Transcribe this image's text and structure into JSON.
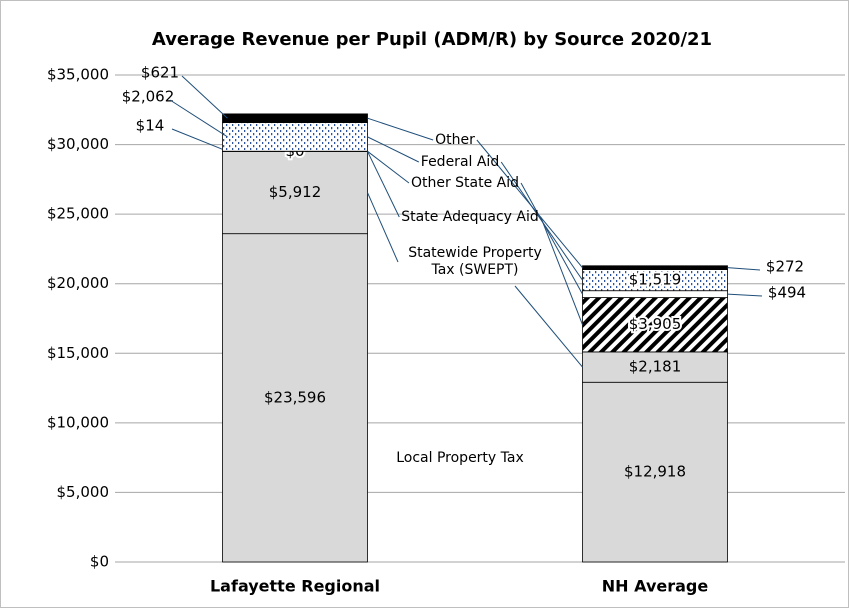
{
  "chart_data": {
    "type": "stacked-bar",
    "title": "Average Revenue per Pupil (ADM/R) by Source 2020/21",
    "categories": [
      "Lafayette Regional",
      "NH Average"
    ],
    "series": [
      {
        "name": "Local Property Tax",
        "color": "#d9d9d9",
        "values": [
          23596,
          12918
        ],
        "value_labels": [
          "$23,596",
          "$12,918"
        ]
      },
      {
        "name": "Statewide Property Tax (SWEPT)",
        "color": "#d9d9d9",
        "values": [
          5912,
          2181
        ],
        "value_labels": [
          "$5,912",
          "$2,181"
        ]
      },
      {
        "name": "State Adequacy Aid",
        "color": "#000000",
        "pattern": "diagonal",
        "values": [
          0,
          3905
        ],
        "value_labels": [
          "$0",
          "$3,905"
        ]
      },
      {
        "name": "Other State Aid",
        "color": "#ffffff",
        "values": [
          14,
          494
        ],
        "value_labels": [
          "$14",
          "$494"
        ]
      },
      {
        "name": "Federal Aid",
        "color": "#2f5597",
        "pattern": "dots",
        "values": [
          2062,
          1519
        ],
        "value_labels": [
          "$2,062",
          "$1,519"
        ]
      },
      {
        "name": "Other",
        "color": "#000000",
        "values": [
          621,
          272
        ],
        "value_labels": [
          "$621",
          "$272"
        ]
      }
    ],
    "ylim": [
      0,
      35000
    ],
    "yticks": [
      {
        "value": 0,
        "label": "$0"
      },
      {
        "value": 5000,
        "label": "$5,000"
      },
      {
        "value": 10000,
        "label": "$10,000"
      },
      {
        "value": 15000,
        "label": "$15,000"
      },
      {
        "value": 20000,
        "label": "$20,000"
      },
      {
        "value": 25000,
        "label": "$25,000"
      },
      {
        "value": 30000,
        "label": "$30,000"
      },
      {
        "value": 35000,
        "label": "$35,000"
      }
    ],
    "grid": true
  }
}
